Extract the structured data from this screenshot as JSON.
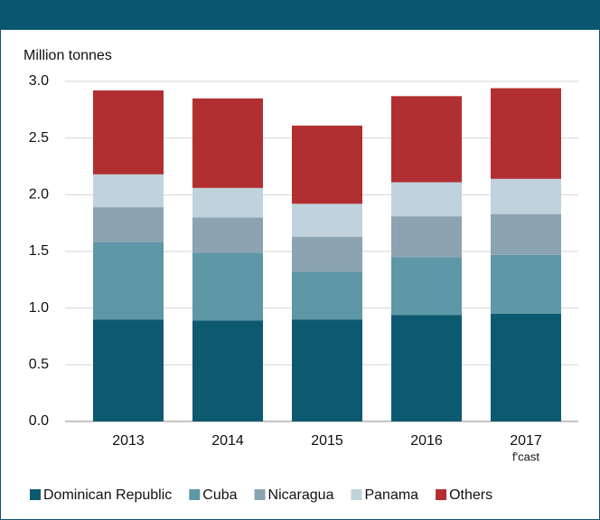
{
  "chart_data": {
    "type": "stacked_bar",
    "y_label": "Million tonnes",
    "categories": [
      "2013",
      "2014",
      "2015",
      "2016",
      "2017"
    ],
    "annotation": "f'cast",
    "series": [
      {
        "name": "Dominican Republic",
        "color": "#0d5a70",
        "values": [
          0.9,
          0.89,
          0.9,
          0.94,
          0.95
        ]
      },
      {
        "name": "Cuba",
        "color": "#5e97a6",
        "values": [
          0.68,
          0.6,
          0.42,
          0.51,
          0.52
        ]
      },
      {
        "name": "Nicaragua",
        "color": "#8ca3b2",
        "values": [
          0.31,
          0.31,
          0.31,
          0.36,
          0.36
        ]
      },
      {
        "name": "Panama",
        "color": "#c0d3dc",
        "values": [
          0.29,
          0.26,
          0.29,
          0.3,
          0.31
        ]
      },
      {
        "name": "Others",
        "color": "#b22f31",
        "values": [
          0.74,
          0.79,
          0.69,
          0.76,
          0.8
        ]
      }
    ],
    "ylim": [
      0,
      3
    ],
    "yticks": [
      {
        "value": 0,
        "label": "0.0"
      },
      {
        "value": 0.5,
        "label": "0.5"
      },
      {
        "value": 1,
        "label": "1.0"
      },
      {
        "value": 1.5,
        "label": "1.5"
      },
      {
        "value": 2,
        "label": "2.0"
      },
      {
        "value": 2.5,
        "label": "2.5"
      },
      {
        "value": 3,
        "label": "3.0"
      }
    ],
    "grid": true
  }
}
